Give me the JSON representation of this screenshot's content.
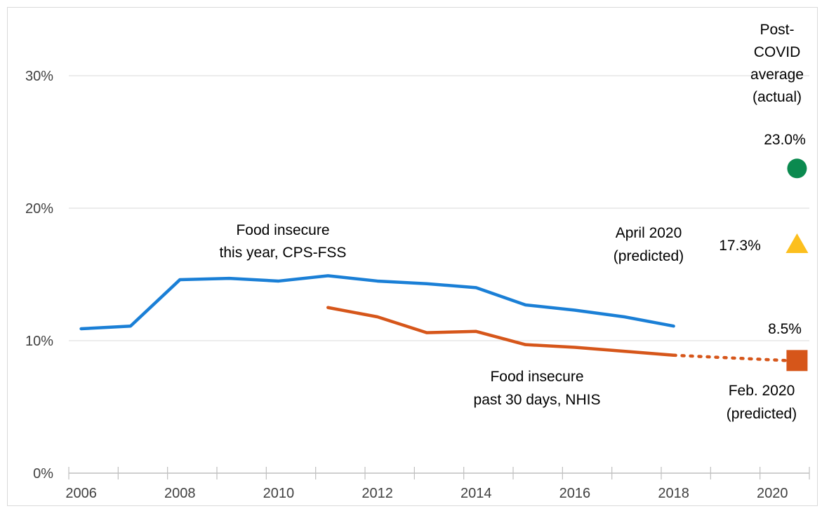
{
  "chart_data": {
    "type": "line",
    "title": "",
    "xlabel": "",
    "ylabel": "",
    "xlim": [
      2005.75,
      2020.75
    ],
    "ylim": [
      0,
      30
    ],
    "x_ticks": [
      "2006",
      "2008",
      "2010",
      "2012",
      "2014",
      "2016",
      "2018",
      "2020"
    ],
    "y_ticks": [
      "0%",
      "10%",
      "20%",
      "30%"
    ],
    "grid": "horizontal",
    "legend": "none",
    "series": [
      {
        "name": "Food insecure this year, CPS-FSS",
        "label_lines": [
          "Food insecure",
          "this year, CPS-FSS"
        ],
        "color": "#1a7fd6",
        "x": [
          2006,
          2007,
          2008,
          2009,
          2010,
          2011,
          2012,
          2013,
          2014,
          2015,
          2016,
          2017,
          2018
        ],
        "y": [
          10.9,
          11.1,
          14.6,
          14.7,
          14.5,
          14.9,
          14.5,
          14.3,
          14.0,
          12.7,
          12.3,
          11.8,
          11.1
        ]
      },
      {
        "name": "Food insecure past 30 days, NHIS",
        "label_lines": [
          "Food insecure",
          "past 30 days, NHIS"
        ],
        "color": "#d6561a",
        "x": [
          2011,
          2012,
          2013,
          2014,
          2015,
          2016,
          2017,
          2018
        ],
        "y": [
          12.5,
          11.8,
          10.6,
          10.7,
          9.7,
          9.5,
          9.2,
          8.9
        ]
      }
    ],
    "projection": {
      "color": "#d6561a",
      "x": [
        2018,
        2020.5
      ],
      "y": [
        8.9,
        8.5
      ]
    },
    "markers": [
      {
        "shape": "circle",
        "color": "#0b8a4f",
        "x": 2020.5,
        "y": 23.0,
        "value_label": "23.0%",
        "label_lines": [
          "Post-",
          "COVID",
          "average",
          "(actual)"
        ]
      },
      {
        "shape": "triangle",
        "color": "#fcbf1e",
        "x": 2020.5,
        "y": 17.3,
        "value_label": "17.3%",
        "label_lines": [
          "April 2020",
          "(predicted)"
        ]
      },
      {
        "shape": "square",
        "color": "#d6561a",
        "x": 2020.5,
        "y": 8.5,
        "value_label": "8.5%",
        "label_lines": [
          "Feb. 2020",
          "(predicted)"
        ]
      }
    ]
  }
}
